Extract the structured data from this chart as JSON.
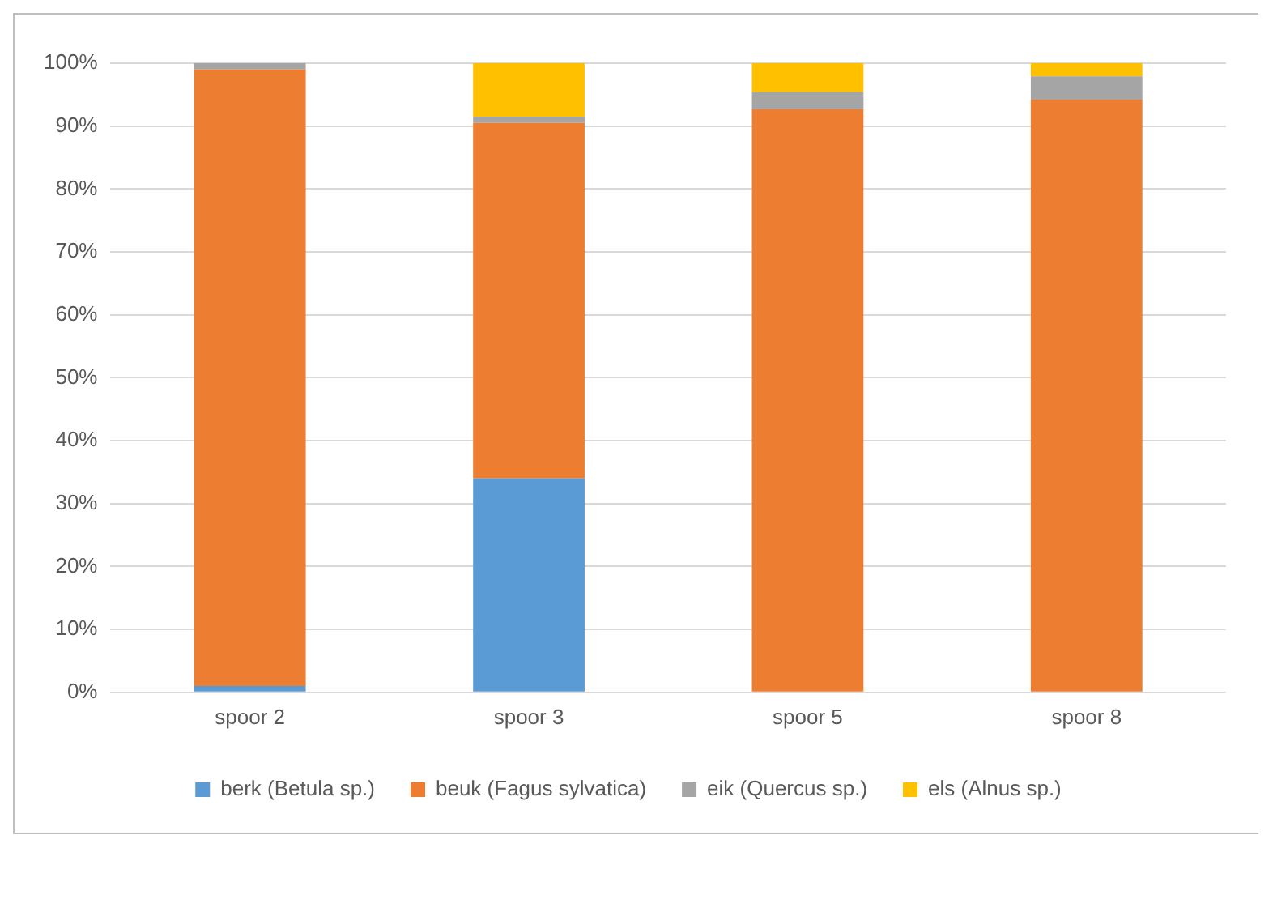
{
  "chart_data": {
    "type": "bar",
    "stacked": true,
    "categories": [
      "spoor 2",
      "spoor 3",
      "spoor 5",
      "spoor 8"
    ],
    "series": [
      {
        "name": "berk (Betula sp.)",
        "color": "#5b9bd5",
        "values": [
          1,
          34,
          0,
          0
        ]
      },
      {
        "name": "beuk (Fagus sylvatica)",
        "color": "#ed7d31",
        "values": [
          98,
          56.5,
          92.7,
          94.2
        ]
      },
      {
        "name": "eik (Quercus sp.)",
        "color": "#a5a5a5",
        "values": [
          1,
          1,
          2.7,
          3.7
        ]
      },
      {
        "name": "els (Alnus sp.)",
        "color": "#ffc000",
        "values": [
          0,
          8.5,
          4.6,
          2.1
        ]
      }
    ],
    "ylim": [
      0,
      100
    ],
    "yticks": [
      {
        "value": 0,
        "label": "0%"
      },
      {
        "value": 10,
        "label": "10%"
      },
      {
        "value": 20,
        "label": "20%"
      },
      {
        "value": 30,
        "label": "30%"
      },
      {
        "value": 40,
        "label": "40%"
      },
      {
        "value": 50,
        "label": "50%"
      },
      {
        "value": 60,
        "label": "60%"
      },
      {
        "value": 70,
        "label": "70%"
      },
      {
        "value": 80,
        "label": "80%"
      },
      {
        "value": 90,
        "label": "90%"
      },
      {
        "value": 100,
        "label": "100%"
      }
    ],
    "grid": "y",
    "legend": "bottom"
  }
}
